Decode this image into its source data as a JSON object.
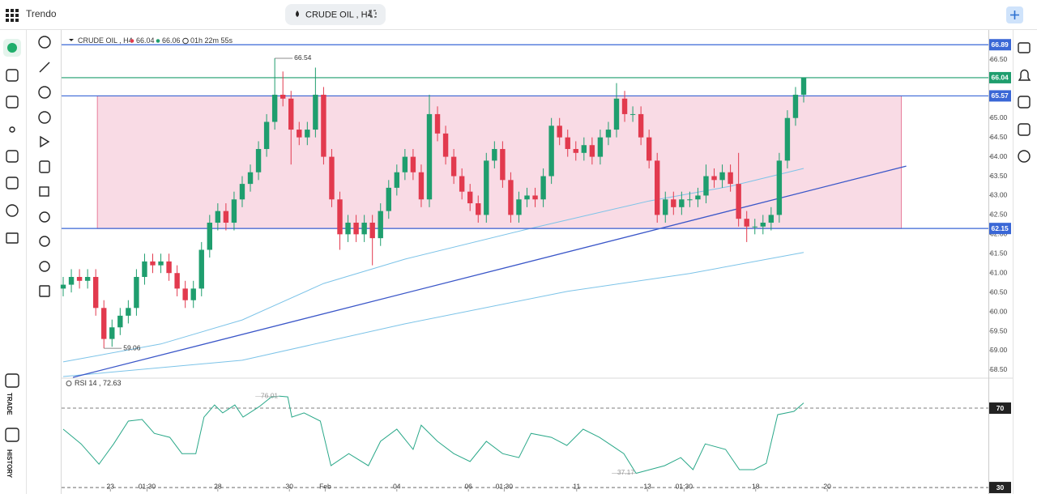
{
  "ui": {
    "app_name": "Trendo",
    "sidebar_labels": [
      "TRADE",
      "HISTORY"
    ]
  },
  "chart_data": {
    "type": "candlestick",
    "symbol": "CRUDE OIL , H4",
    "bid": 66.04,
    "ask": 66.06,
    "countdown": "01h 22m 55s",
    "up_color": "#1f9e6e",
    "down_color": "#e23a4e",
    "xlim": [
      -0.2,
      113.7
    ],
    "xticks": [
      {
        "value": 5.8,
        "label": "23"
      },
      {
        "value": 10.3,
        "label": "01:30"
      },
      {
        "value": 19.0,
        "label": "28"
      },
      {
        "value": 27.8,
        "label": "30"
      },
      {
        "value": 32.2,
        "label": "Feb"
      },
      {
        "value": 41.0,
        "label": "04"
      },
      {
        "value": 49.8,
        "label": "06"
      },
      {
        "value": 54.2,
        "label": "01:30"
      },
      {
        "value": 63.1,
        "label": "11"
      },
      {
        "value": 71.8,
        "label": "13"
      },
      {
        "value": 76.3,
        "label": "01:30"
      },
      {
        "value": 85.1,
        "label": "18"
      },
      {
        "value": 93.9,
        "label": "20"
      }
    ],
    "ylim": [
      58.31,
      67.25
    ],
    "yticks": [
      {
        "value": 58.5,
        "label": "58.50"
      },
      {
        "value": 59,
        "label": "59.00"
      },
      {
        "value": 59.5,
        "label": "59.50"
      },
      {
        "value": 60,
        "label": "60.00"
      },
      {
        "value": 60.5,
        "label": "60.50"
      },
      {
        "value": 61,
        "label": "61.00"
      },
      {
        "value": 61.5,
        "label": "61.50"
      },
      {
        "value": 62,
        "label": "62.00"
      },
      {
        "value": 62.5,
        "label": "62.50"
      },
      {
        "value": 63,
        "label": "63.00"
      },
      {
        "value": 63.5,
        "label": "63.50"
      },
      {
        "value": 64,
        "label": "64.00"
      },
      {
        "value": 64.5,
        "label": "64.50"
      },
      {
        "value": 65,
        "label": "65.00"
      },
      {
        "value": 65.5,
        "label": "65.50"
      },
      {
        "value": 66,
        "label": "66.00"
      },
      {
        "value": 66.5,
        "label": "66.50"
      }
    ],
    "open": [
      60.6,
      60.7,
      60.9,
      60.8,
      60.9,
      60.1,
      59.3,
      59.6,
      59.9,
      60.1,
      60.9,
      61.3,
      61.2,
      61.3,
      61.0,
      60.6,
      60.3,
      60.6,
      61.6,
      62.3,
      62.6,
      62.3,
      62.9,
      63.3,
      63.6,
      64.2,
      64.9,
      65.6,
      65.5,
      64.7,
      64.5,
      64.7,
      65.6,
      64.0,
      62.9,
      62.0,
      62.3,
      62.0,
      62.3,
      61.9,
      62.6,
      63.2,
      63.6,
      64.0,
      63.6,
      62.9,
      65.1,
      64.6,
      64.0,
      63.5,
      63.1,
      62.8,
      62.5,
      63.9,
      64.2,
      63.4,
      62.5,
      62.9,
      63.0,
      62.9,
      63.5,
      64.8,
      64.5,
      64.2,
      64.1,
      64.3,
      64.0,
      64.5,
      64.7,
      65.5,
      65.1,
      65.1,
      64.5,
      63.9,
      62.5,
      62.9,
      62.7,
      62.9,
      62.9,
      63.0,
      63.5,
      63.4,
      63.6,
      63.3,
      62.4,
      62.2,
      62.2,
      62.3,
      62.5,
      63.9,
      65.0,
      65.6
    ],
    "high": [
      60.9,
      61.1,
      61.1,
      61.1,
      61.1,
      60.3,
      59.8,
      60.1,
      60.3,
      61.1,
      61.5,
      61.5,
      61.5,
      61.5,
      61.2,
      60.8,
      60.8,
      61.8,
      62.5,
      62.8,
      62.8,
      63.1,
      63.5,
      63.8,
      64.4,
      65.1,
      66.54,
      66.2,
      65.7,
      64.9,
      64.9,
      66.3,
      65.8,
      64.2,
      63.1,
      62.5,
      62.5,
      62.5,
      62.5,
      62.8,
      63.4,
      63.8,
      64.2,
      64.2,
      63.8,
      65.6,
      65.3,
      64.8,
      64.2,
      63.7,
      63.3,
      63.0,
      64.1,
      64.4,
      64.4,
      63.6,
      63.1,
      63.2,
      63.2,
      63.7,
      65.0,
      65.0,
      64.7,
      64.4,
      64.5,
      64.5,
      64.7,
      64.9,
      65.9,
      65.7,
      65.3,
      65.3,
      64.7,
      64.1,
      63.1,
      63.1,
      63.1,
      63.1,
      63.2,
      63.8,
      63.7,
      63.8,
      63.8,
      64.1,
      62.6,
      62.4,
      62.5,
      62.7,
      64.1,
      65.2,
      65.8,
      66.04
    ],
    "low": [
      60.4,
      60.5,
      60.6,
      60.6,
      59.9,
      59.06,
      59.1,
      59.4,
      59.7,
      59.9,
      60.7,
      61.0,
      61.0,
      60.8,
      60.4,
      60.1,
      60.1,
      60.4,
      61.4,
      62.1,
      62.1,
      62.1,
      62.7,
      63.1,
      63.4,
      64.0,
      64.7,
      65.3,
      63.8,
      64.3,
      64.3,
      64.5,
      63.8,
      62.7,
      61.6,
      61.8,
      61.8,
      61.8,
      61.2,
      61.7,
      62.4,
      63.0,
      63.4,
      63.4,
      62.7,
      62.7,
      64.4,
      63.8,
      63.3,
      62.9,
      62.6,
      62.3,
      62.3,
      63.7,
      63.2,
      62.3,
      62.3,
      62.7,
      62.7,
      62.7,
      63.3,
      64.3,
      64.0,
      63.9,
      63.9,
      63.8,
      63.8,
      64.3,
      64.5,
      64.9,
      64.9,
      64.3,
      63.7,
      62.3,
      62.3,
      62.5,
      62.5,
      62.7,
      62.7,
      62.8,
      63.2,
      63.2,
      63.1,
      62.2,
      61.8,
      62.0,
      62.0,
      62.1,
      62.3,
      63.7,
      64.8,
      65.4
    ],
    "close": [
      60.7,
      60.9,
      60.8,
      60.9,
      60.1,
      59.3,
      59.6,
      59.9,
      60.1,
      60.9,
      61.3,
      61.2,
      61.3,
      61.0,
      60.6,
      60.3,
      60.6,
      61.6,
      62.3,
      62.6,
      62.3,
      62.9,
      63.3,
      63.6,
      64.2,
      64.9,
      65.6,
      65.5,
      64.7,
      64.5,
      64.7,
      65.6,
      64.0,
      62.9,
      62.0,
      62.3,
      62.0,
      62.3,
      61.9,
      62.6,
      63.2,
      63.6,
      64.0,
      63.6,
      62.9,
      65.1,
      64.6,
      64.0,
      63.5,
      63.1,
      62.8,
      62.5,
      63.9,
      64.2,
      63.4,
      62.5,
      62.9,
      63.0,
      62.9,
      63.5,
      64.8,
      64.5,
      64.2,
      64.1,
      64.3,
      64.0,
      64.5,
      64.7,
      65.5,
      65.1,
      65.1,
      64.5,
      63.9,
      62.5,
      62.9,
      62.7,
      62.9,
      62.9,
      63.0,
      63.5,
      63.4,
      63.6,
      63.3,
      62.4,
      62.2,
      62.2,
      62.3,
      62.5,
      63.9,
      65.0,
      65.6,
      66.04
    ],
    "moving_averages": [
      {
        "color": "#7cc3e8",
        "x": [
          0,
          12,
          22,
          32,
          42,
          57,
          72,
          82,
          91
        ],
        "values": [
          58.71,
          59.17,
          59.79,
          60.73,
          61.36,
          62.13,
          62.86,
          63.24,
          63.7
        ]
      },
      {
        "color": "#7cc3e8",
        "x": [
          0,
          22,
          42,
          62,
          77,
          91
        ],
        "values": [
          58.33,
          58.75,
          59.69,
          60.53,
          60.99,
          61.53
        ]
      }
    ],
    "trendline": {
      "color": "#3a56c8",
      "x": [
        1.2,
        103.6
      ],
      "values": [
        58.31,
        63.76
      ]
    },
    "zone": {
      "color": "#f9dbe5",
      "border": "#e87d9b",
      "x": [
        4.2,
        103.0
      ],
      "values": [
        62.15,
        65.57
      ]
    },
    "levels": [
      {
        "value": 66.89,
        "color": "#3a67d6"
      },
      {
        "value": 66.04,
        "color": "#1f9e6e"
      },
      {
        "value": 65.57,
        "color": "#3a67d6"
      },
      {
        "value": 62.15,
        "color": "#3a67d6"
      }
    ],
    "annotations": [
      {
        "x": 26,
        "value": 66.54
      },
      {
        "x": 5,
        "value": 59.06
      }
    ],
    "rsi": {
      "title": "RSI 14 , 72.63",
      "color": "#2aa889",
      "ylim": [
        28.4,
        84.7
      ],
      "yticks": [
        30,
        70
      ],
      "x": [
        0,
        2.2,
        4.4,
        6.2,
        8.0,
        9.7,
        11.2,
        13.1,
        14.6,
        16.3,
        17.3,
        18.6,
        19.6,
        21.1,
        22.1,
        24.1,
        25.6,
        26.6,
        27.6,
        28.1,
        29.6,
        31.6,
        32.9,
        35.1,
        37.5,
        39.0,
        41.0,
        43.0,
        44.0,
        46.0,
        48.0,
        50.0,
        52.0,
        54.0,
        56.0,
        57.5,
        60.0,
        61.9,
        63.9,
        65.9,
        68.9,
        70.4,
        71.9,
        73.9,
        75.9,
        77.4,
        78.9,
        81.4,
        83.1,
        84.9,
        86.4,
        87.8,
        89.8,
        91
      ],
      "values": [
        59.4,
        52.0,
        41.8,
        52.0,
        63.5,
        64.3,
        57.3,
        55.3,
        47.1,
        47.1,
        65.5,
        71.6,
        67.6,
        71.6,
        65.5,
        70.8,
        75.7,
        76.01,
        75.7,
        65.5,
        67.6,
        63.5,
        41.0,
        47.1,
        41.0,
        53.3,
        59.4,
        49.2,
        61.4,
        53.3,
        47.1,
        43.1,
        53.3,
        47.1,
        45.1,
        57.3,
        55.3,
        51.2,
        59.4,
        55.3,
        47.1,
        37.17,
        38.8,
        41.0,
        45.1,
        39.0,
        52.0,
        49.2,
        39.0,
        39.0,
        42.2,
        66.7,
        68.4,
        72.63
      ],
      "annotations": [
        {
          "x": 26.6,
          "value": 76.01
        },
        {
          "x": 70.4,
          "value": 37.17
        }
      ]
    }
  }
}
